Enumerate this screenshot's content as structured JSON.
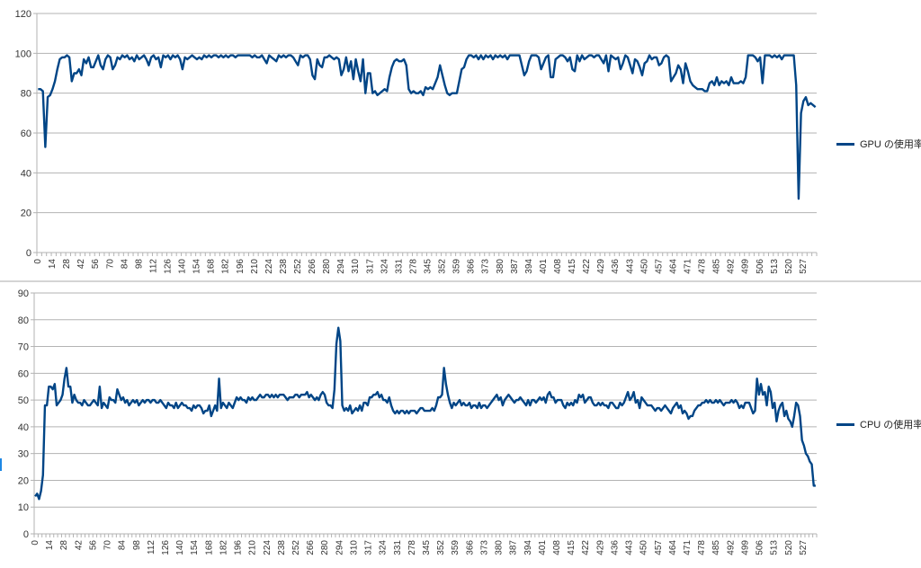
{
  "colors": {
    "series": "#004586",
    "grid": "#b3b3b3",
    "axis": "#b3b3b3"
  },
  "chart_data": [
    {
      "type": "line",
      "title": "",
      "xlabel": "",
      "ylabel": "",
      "ylim": [
        0,
        120
      ],
      "yticks": [
        0,
        20,
        40,
        60,
        80,
        100,
        120
      ],
      "grid": "horizontal",
      "legend": "right",
      "xtick_labels": [
        "0",
        "14",
        "28",
        "42",
        "56",
        "70",
        "84",
        "98",
        "112",
        "126",
        "140",
        "154",
        "168",
        "182",
        "196",
        "210",
        "224",
        "238",
        "252",
        "266",
        "280",
        "294",
        "310",
        "317",
        "324",
        "331",
        "278",
        "345",
        "352",
        "359",
        "366",
        "373",
        "380",
        "387",
        "394",
        "401",
        "408",
        "415",
        "422",
        "429",
        "436",
        "443",
        "450",
        "457",
        "464",
        "471",
        "478",
        "485",
        "492",
        "499",
        "506",
        "513",
        "520",
        "527"
      ],
      "series": [
        {
          "name": "GPU の使用率",
          "values": [
            82,
            82,
            81,
            53,
            78,
            79,
            82,
            86,
            92,
            97,
            98,
            98,
            99,
            98,
            86,
            90,
            90,
            92,
            89,
            97,
            95,
            98,
            93,
            93,
            96,
            99,
            94,
            92,
            97,
            99,
            98,
            92,
            94,
            98,
            97,
            99,
            98,
            99,
            97,
            98,
            96,
            99,
            97,
            98,
            99,
            97,
            94,
            98,
            99,
            97,
            98,
            93,
            99,
            98,
            99,
            97,
            99,
            98,
            99,
            97,
            92,
            98,
            97,
            98,
            99,
            98,
            97,
            98,
            97,
            99,
            98,
            99,
            98,
            99,
            99,
            98,
            99,
            98,
            99,
            98,
            99,
            99,
            98,
            99,
            99,
            99,
            99,
            99,
            99,
            98,
            99,
            98,
            98,
            99,
            97,
            95,
            99,
            98,
            97,
            96,
            99,
            98,
            99,
            98,
            99,
            99,
            98,
            96,
            94,
            99,
            98,
            99,
            99,
            97,
            89,
            87,
            97,
            94,
            93,
            98,
            98,
            99,
            98,
            97,
            98,
            97,
            89,
            92,
            98,
            91,
            96,
            87,
            97,
            91,
            86,
            97,
            80,
            90,
            90,
            80,
            81,
            79,
            80,
            81,
            82,
            81,
            88,
            93,
            96,
            97,
            96,
            96,
            97,
            94,
            82,
            80,
            81,
            80,
            80,
            81,
            79,
            83,
            82,
            83,
            82,
            85,
            88,
            94,
            89,
            84,
            80,
            79,
            80,
            80,
            80,
            86,
            92,
            93,
            97,
            99,
            99,
            98,
            99,
            97,
            99,
            97,
            99,
            98,
            99,
            97,
            99,
            98,
            99,
            98,
            99,
            97,
            99,
            99,
            99,
            99,
            99,
            94,
            89,
            91,
            96,
            99,
            99,
            99,
            98,
            92,
            95,
            98,
            99,
            88,
            88,
            97,
            98,
            99,
            99,
            98,
            96,
            98,
            92,
            91,
            99,
            96,
            99,
            97,
            98,
            99,
            99,
            98,
            99,
            99,
            97,
            95,
            99,
            91,
            99,
            98,
            97,
            98,
            92,
            95,
            99,
            98,
            94,
            90,
            97,
            96,
            93,
            89,
            95,
            96,
            99,
            97,
            98,
            98,
            94,
            95,
            98,
            99,
            98,
            86,
            88,
            90,
            94,
            92,
            85,
            95,
            91,
            86,
            84,
            83,
            82,
            82,
            82,
            81,
            81,
            85,
            86,
            84,
            88,
            84,
            86,
            85,
            86,
            84,
            88,
            85,
            85,
            85,
            86,
            85,
            88,
            99,
            99,
            99,
            98,
            96,
            98,
            85,
            99,
            99,
            99,
            98,
            99,
            98,
            99,
            97,
            99,
            99,
            99,
            99,
            99,
            84,
            27,
            70,
            76,
            78,
            74,
            75,
            74,
            73
          ],
          "color": "#004586"
        }
      ]
    },
    {
      "type": "line",
      "title": "",
      "xlabel": "",
      "ylabel": "",
      "ylim": [
        0,
        90
      ],
      "yticks": [
        0,
        10,
        20,
        30,
        40,
        50,
        60,
        70,
        80,
        90
      ],
      "grid": "horizontal",
      "legend": "right",
      "xtick_labels": [
        "0",
        "14",
        "28",
        "42",
        "56",
        "70",
        "84",
        "98",
        "112",
        "126",
        "140",
        "154",
        "168",
        "182",
        "196",
        "210",
        "224",
        "238",
        "252",
        "266",
        "280",
        "294",
        "310",
        "317",
        "324",
        "331",
        "278",
        "345",
        "352",
        "359",
        "366",
        "373",
        "380",
        "387",
        "394",
        "401",
        "408",
        "415",
        "422",
        "429",
        "436",
        "443",
        "450",
        "457",
        "464",
        "471",
        "478",
        "485",
        "492",
        "499",
        "506",
        "513",
        "520",
        "527"
      ],
      "series": [
        {
          "name": "CPU の使用率",
          "values": [
            14,
            15,
            13,
            16,
            22,
            48,
            48,
            55,
            55,
            54,
            56,
            48,
            49,
            50,
            52,
            58,
            62,
            55,
            55,
            49,
            52,
            50,
            49,
            49,
            48,
            50,
            49,
            48,
            48,
            49,
            50,
            49,
            48,
            55,
            47,
            49,
            48,
            47,
            51,
            50,
            50,
            49,
            54,
            52,
            50,
            51,
            49,
            50,
            48,
            49,
            50,
            49,
            50,
            48,
            49,
            50,
            49,
            50,
            50,
            49,
            50,
            50,
            49,
            49,
            50,
            49,
            48,
            47,
            49,
            48,
            48,
            47,
            49,
            47,
            48,
            49,
            48,
            48,
            47,
            47,
            46,
            48,
            47,
            48,
            48,
            47,
            45,
            46,
            46,
            48,
            44,
            46,
            48,
            46,
            58,
            47,
            49,
            48,
            47,
            49,
            48,
            47,
            49,
            51,
            50,
            51,
            50,
            50,
            49,
            51,
            50,
            51,
            50,
            50,
            51,
            52,
            51,
            51,
            52,
            52,
            51,
            52,
            51,
            52,
            51,
            52,
            52,
            52,
            51,
            50,
            51,
            51,
            51,
            52,
            52,
            51,
            52,
            52,
            52,
            53,
            51,
            52,
            51,
            50,
            51,
            50,
            52,
            53,
            52,
            49,
            48,
            48,
            47,
            54,
            71,
            77,
            72,
            48,
            46,
            47,
            46,
            48,
            45,
            46,
            47,
            46,
            48,
            46,
            49,
            49,
            48,
            51,
            51,
            52,
            52,
            53,
            51,
            52,
            50,
            50,
            49,
            51,
            48,
            46,
            45,
            46,
            45,
            46,
            46,
            45,
            46,
            45,
            46,
            46,
            46,
            45,
            46,
            47,
            47,
            46,
            46,
            46,
            46,
            47,
            46,
            48,
            51,
            51,
            52,
            62,
            56,
            52,
            49,
            47,
            49,
            48,
            49,
            50,
            48,
            49,
            48,
            48,
            49,
            47,
            48,
            48,
            47,
            49,
            47,
            48,
            48,
            47,
            48,
            49,
            50,
            51,
            52,
            50,
            51,
            48,
            50,
            51,
            52,
            51,
            50,
            49,
            50,
            50,
            51,
            50,
            49,
            48,
            50,
            48,
            50,
            50,
            49,
            50,
            51,
            50,
            51,
            49,
            52,
            53,
            51,
            51,
            49,
            50,
            50,
            50,
            48,
            47,
            49,
            48,
            49,
            48,
            50,
            49,
            52,
            51,
            52,
            49,
            50,
            51,
            51,
            49,
            48,
            48,
            49,
            48,
            49,
            48,
            48,
            47,
            49,
            49,
            48,
            47,
            47,
            49,
            48,
            49,
            51,
            53,
            50,
            51,
            53,
            49,
            50,
            47,
            51,
            50,
            49,
            48,
            48,
            48,
            47,
            46,
            47,
            47,
            46,
            47,
            48,
            47,
            46,
            45,
            47,
            48,
            49,
            47,
            48,
            45,
            46,
            45,
            43,
            44,
            44,
            46,
            47,
            48,
            48,
            49,
            49,
            50,
            49,
            50,
            49,
            49,
            50,
            49,
            50,
            49,
            48,
            49,
            49,
            49,
            50,
            49,
            50,
            49,
            47,
            48,
            47,
            49,
            49,
            49,
            47,
            45,
            46,
            58,
            52,
            56,
            52,
            53,
            48,
            55,
            53,
            47,
            49,
            42,
            46,
            48,
            49,
            44,
            46,
            43,
            42,
            40,
            44,
            49,
            48,
            44,
            35,
            33,
            30,
            29,
            27,
            26,
            18,
            18
          ],
          "color": "#004586"
        }
      ]
    }
  ]
}
